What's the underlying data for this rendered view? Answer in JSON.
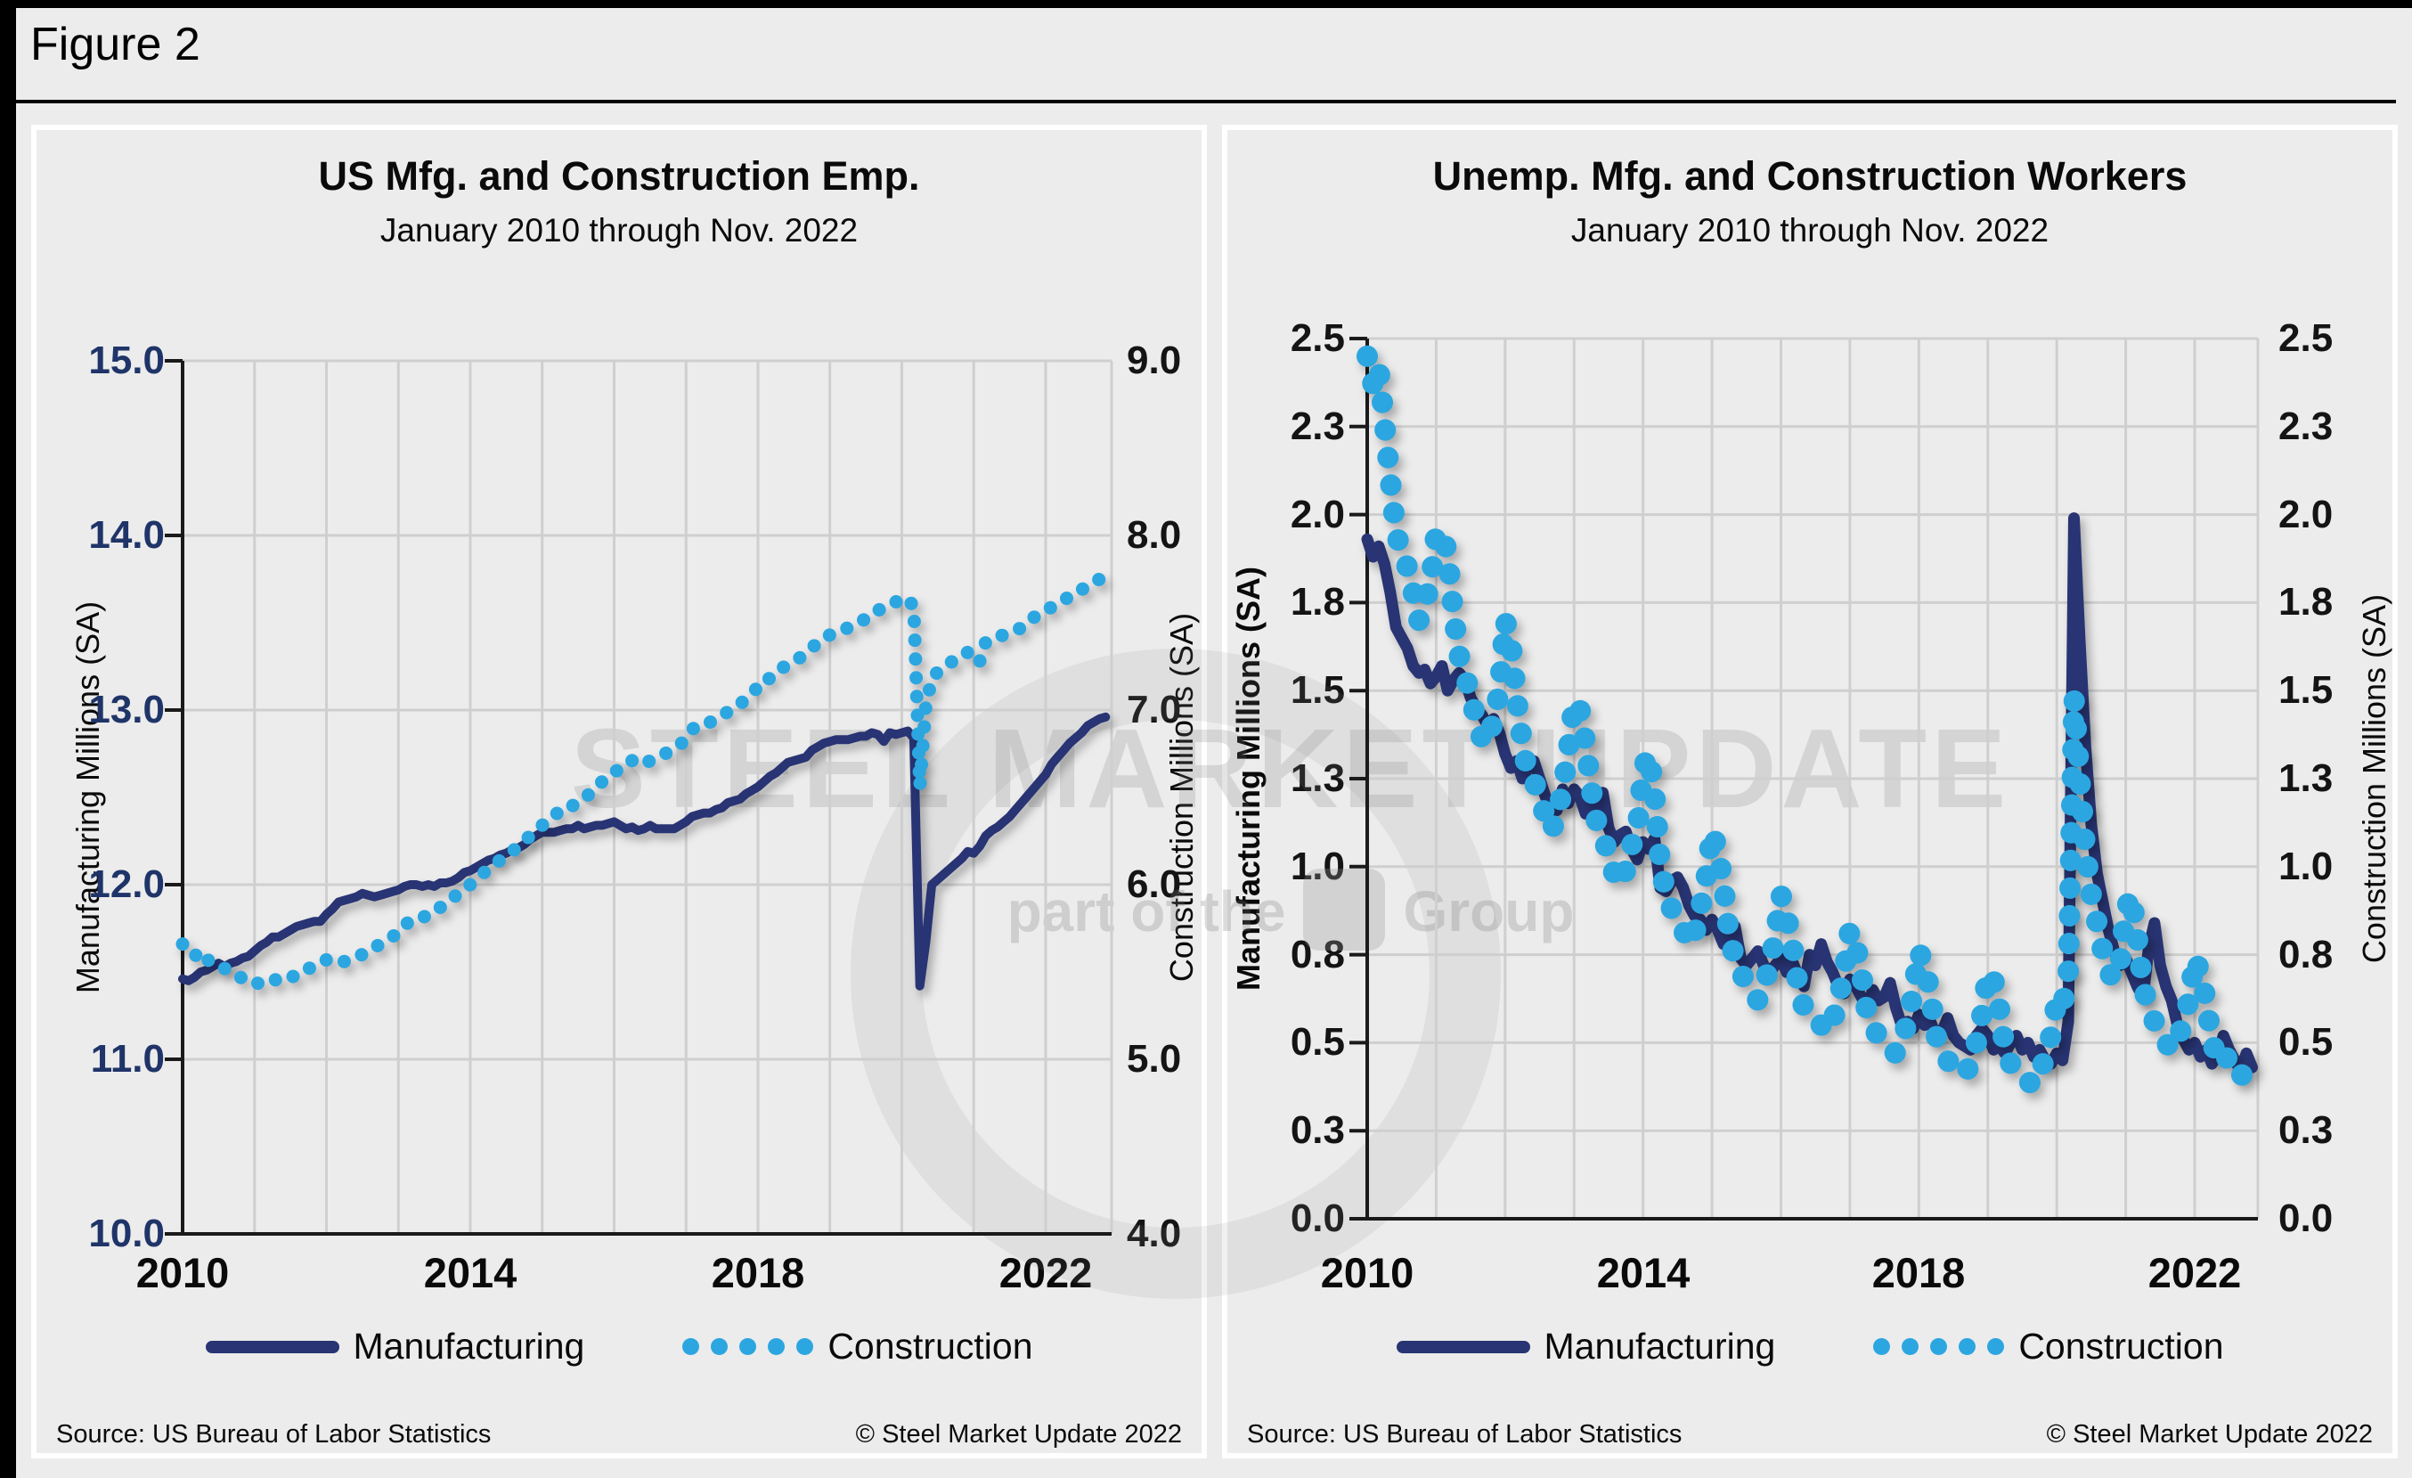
{
  "figure": {
    "label": "Figure 2"
  },
  "watermark": {
    "line1": "STEEL MARKET UPDATE",
    "line2_prefix": "part of the",
    "line2_suffix": "Group"
  },
  "chart_data": [
    {
      "type": "line",
      "title": "US Mfg. and Construction Emp.",
      "subtitle": "January 2010 through Nov. 2022",
      "y_left": {
        "title": "Manufacturing Millions (SA)",
        "min": 10,
        "max": 15,
        "grid_step": 1,
        "tick_values": [
          15,
          14,
          13,
          12,
          11,
          10
        ],
        "labels": [
          "15.0",
          "14.0",
          "13.0",
          "12.0",
          "11.0",
          "10.0"
        ]
      },
      "y_right": {
        "title": "Construction Millions (SA)",
        "min": 4,
        "max": 9,
        "tick_values": [
          9,
          8,
          7,
          6,
          5,
          4
        ],
        "labels": [
          "9.0",
          "8.0",
          "7.0",
          "6.0",
          "5.0",
          "4.0"
        ]
      },
      "x_axis": {
        "min": 2010,
        "max": 2022.9167,
        "grid_step_years": 1,
        "tick_years": [
          2010,
          2014,
          2018,
          2022
        ],
        "labels": [
          "2010",
          "2014",
          "2018",
          "2022"
        ]
      },
      "legend": [
        {
          "label": "Manufacturing",
          "marker": "line"
        },
        {
          "label": "Construction",
          "marker": "dots"
        }
      ],
      "footer": {
        "source": "Source: US Bureau  of Labor Statistics",
        "copyright": "© Steel Market Update 2022"
      },
      "series": [
        {
          "name": "Manufacturing",
          "axis": "left",
          "style": "solid",
          "color": "#283473",
          "start": "2010-01",
          "frequency": "monthly",
          "values": [
            11.46,
            11.45,
            11.47,
            11.5,
            11.51,
            11.53,
            11.55,
            11.53,
            11.55,
            11.56,
            11.58,
            11.59,
            11.62,
            11.65,
            11.67,
            11.7,
            11.7,
            11.72,
            11.74,
            11.76,
            11.77,
            11.78,
            11.79,
            11.79,
            11.83,
            11.86,
            11.9,
            11.91,
            11.92,
            11.93,
            11.95,
            11.94,
            11.93,
            11.94,
            11.95,
            11.96,
            11.97,
            11.99,
            12.0,
            12.0,
            11.99,
            12.0,
            11.99,
            12.01,
            12.01,
            12.02,
            12.04,
            12.07,
            12.08,
            12.1,
            12.12,
            12.14,
            12.15,
            12.17,
            12.18,
            12.2,
            12.21,
            12.23,
            12.26,
            12.28,
            12.3,
            12.3,
            12.3,
            12.31,
            12.32,
            12.32,
            12.34,
            12.32,
            12.33,
            12.34,
            12.34,
            12.35,
            12.36,
            12.34,
            12.32,
            12.33,
            12.31,
            12.32,
            12.34,
            12.32,
            12.32,
            12.32,
            12.32,
            12.34,
            12.36,
            12.39,
            12.4,
            12.41,
            12.41,
            12.43,
            12.44,
            12.47,
            12.48,
            12.49,
            12.52,
            12.54,
            12.56,
            12.59,
            12.62,
            12.64,
            12.67,
            12.7,
            12.71,
            12.72,
            12.73,
            12.77,
            12.79,
            12.81,
            12.82,
            12.83,
            12.83,
            12.83,
            12.84,
            12.85,
            12.85,
            12.87,
            12.86,
            12.82,
            12.87,
            12.86,
            12.87,
            12.88,
            12.84,
            11.42,
            11.67,
            12.0,
            12.03,
            12.06,
            12.09,
            12.12,
            12.15,
            12.19,
            12.18,
            12.22,
            12.28,
            12.31,
            12.33,
            12.36,
            12.39,
            12.43,
            12.47,
            12.51,
            12.55,
            12.59,
            12.63,
            12.69,
            12.73,
            12.77,
            12.81,
            12.84,
            12.87,
            12.91,
            12.93,
            12.95,
            12.96
          ]
        },
        {
          "name": "Construction",
          "axis": "right",
          "style": "dotted",
          "color": "#2CA6E0",
          "start": "2010-01",
          "frequency": "monthly",
          "values": [
            5.66,
            5.62,
            5.59,
            5.62,
            5.57,
            5.56,
            5.55,
            5.52,
            5.51,
            5.49,
            5.46,
            5.45,
            5.43,
            5.44,
            5.46,
            5.46,
            5.45,
            5.45,
            5.47,
            5.48,
            5.51,
            5.52,
            5.53,
            5.55,
            5.57,
            5.56,
            5.55,
            5.56,
            5.58,
            5.59,
            5.6,
            5.61,
            5.64,
            5.66,
            5.68,
            5.7,
            5.73,
            5.77,
            5.79,
            5.79,
            5.81,
            5.83,
            5.84,
            5.87,
            5.89,
            5.92,
            5.95,
            5.98,
            6.0,
            6.03,
            6.06,
            6.09,
            6.12,
            6.14,
            6.17,
            6.19,
            6.22,
            6.25,
            6.28,
            6.31,
            6.34,
            6.37,
            6.39,
            6.43,
            6.45,
            6.45,
            6.48,
            6.5,
            6.52,
            6.56,
            6.59,
            6.62,
            6.64,
            6.67,
            6.7,
            6.71,
            6.69,
            6.69,
            6.71,
            6.72,
            6.74,
            6.76,
            6.78,
            6.8,
            6.84,
            6.89,
            6.91,
            6.91,
            6.93,
            6.95,
            6.97,
            6.99,
            7.01,
            7.03,
            7.07,
            7.1,
            7.13,
            7.18,
            7.18,
            7.2,
            7.24,
            7.26,
            7.28,
            7.3,
            7.33,
            7.36,
            7.38,
            7.41,
            7.43,
            7.45,
            7.46,
            7.47,
            7.49,
            7.51,
            7.52,
            7.55,
            7.57,
            7.59,
            7.6,
            7.62,
            7.62,
            7.64,
            7.59,
            6.56,
            7.02,
            7.18,
            7.22,
            7.25,
            7.27,
            7.29,
            7.32,
            7.33,
            7.34,
            7.28,
            7.39,
            7.41,
            7.42,
            7.43,
            7.45,
            7.46,
            7.47,
            7.5,
            7.53,
            7.55,
            7.57,
            7.59,
            7.61,
            7.63,
            7.65,
            7.66,
            7.69,
            7.71,
            7.73,
            7.75,
            7.76
          ]
        }
      ]
    },
    {
      "type": "line",
      "title": "Unemp. Mfg. and Construction Workers",
      "subtitle": "January 2010 through Nov. 2022",
      "y_left": {
        "title": "Manufacturing Millions (SA)",
        "min": 0,
        "max": 2.5,
        "grid_step": 0.25,
        "tick_values": [
          2.5,
          2.25,
          2.0,
          1.75,
          1.5,
          1.25,
          1.0,
          0.75,
          0.5,
          0.25,
          0
        ],
        "labels": [
          "2.5",
          "2.3",
          "2.0",
          "1.8",
          "1.5",
          "1.3",
          "1.0",
          "0.8",
          "0.5",
          "0.3",
          "0.0"
        ]
      },
      "y_right": {
        "title": "Construction Millions (SA)",
        "min": 0,
        "max": 2.5,
        "tick_values": [
          2.5,
          2.25,
          2.0,
          1.75,
          1.5,
          1.25,
          1.0,
          0.75,
          0.5,
          0.25,
          0
        ],
        "labels": [
          "2.5",
          "2.3",
          "2.0",
          "1.8",
          "1.5",
          "1.3",
          "1.0",
          "0.8",
          "0.5",
          "0.3",
          "0.0"
        ]
      },
      "x_axis": {
        "min": 2010,
        "max": 2022.9167,
        "grid_step_years": 1,
        "tick_years": [
          2010,
          2014,
          2018,
          2022
        ],
        "labels": [
          "2010",
          "2014",
          "2018",
          "2022"
        ]
      },
      "legend": [
        {
          "label": "Manufacturing",
          "marker": "line"
        },
        {
          "label": "Construction",
          "marker": "dots"
        }
      ],
      "footer": {
        "source": "Source: US Bureau  of Labor Statistics",
        "copyright": "© Steel Market Update 2022"
      },
      "series": [
        {
          "name": "Manufacturing",
          "axis": "left",
          "style": "solid",
          "color": "#283473",
          "start": "2010-01",
          "frequency": "monthly",
          "values": [
            1.93,
            1.88,
            1.91,
            1.86,
            1.78,
            1.68,
            1.65,
            1.62,
            1.57,
            1.55,
            1.56,
            1.52,
            1.54,
            1.57,
            1.5,
            1.53,
            1.55,
            1.53,
            1.48,
            1.45,
            1.43,
            1.4,
            1.42,
            1.38,
            1.32,
            1.28,
            1.3,
            1.25,
            1.28,
            1.3,
            1.25,
            1.2,
            1.16,
            1.16,
            1.22,
            1.18,
            1.22,
            1.2,
            1.15,
            1.18,
            1.16,
            1.21,
            1.11,
            1.07,
            1.09,
            1.1,
            1.05,
            1.02,
            1.07,
            1.05,
            1.08,
            0.94,
            0.93,
            0.96,
            0.97,
            0.94,
            0.89,
            0.86,
            0.85,
            0.82,
            0.85,
            0.82,
            0.78,
            0.79,
            0.83,
            0.74,
            0.72,
            0.74,
            0.76,
            0.72,
            0.7,
            0.72,
            0.74,
            0.7,
            0.73,
            0.69,
            0.66,
            0.75,
            0.72,
            0.78,
            0.73,
            0.7,
            0.66,
            0.64,
            0.68,
            0.66,
            0.63,
            0.6,
            0.65,
            0.62,
            0.63,
            0.67,
            0.6,
            0.55,
            0.56,
            0.54,
            0.58,
            0.55,
            0.56,
            0.52,
            0.53,
            0.57,
            0.52,
            0.5,
            0.49,
            0.48,
            0.52,
            0.54,
            0.52,
            0.48,
            0.49,
            0.47,
            0.5,
            0.52,
            0.48,
            0.5,
            0.46,
            0.48,
            0.45,
            0.44,
            0.47,
            0.45,
            0.56,
            1.99,
            1.64,
            1.34,
            1.12,
            0.98,
            0.9,
            0.82,
            0.76,
            0.72,
            0.74,
            0.7,
            0.66,
            0.63,
            0.77,
            0.84,
            0.72,
            0.66,
            0.62,
            0.55,
            0.51,
            0.48,
            0.5,
            0.46,
            0.48,
            0.44,
            0.47,
            0.52,
            0.48,
            0.45,
            0.42,
            0.47,
            0.43
          ]
        },
        {
          "name": "Construction",
          "axis": "right",
          "style": "dotted",
          "color": "#2CA6E0",
          "start": "2010-01",
          "frequency": "monthly",
          "values": [
            2.45,
            2.37,
            2.42,
            2.26,
            2.1,
            1.95,
            1.89,
            1.85,
            1.78,
            1.7,
            1.75,
            1.8,
            1.95,
            1.95,
            1.89,
            1.72,
            1.6,
            1.55,
            1.48,
            1.42,
            1.36,
            1.35,
            1.42,
            1.5,
            1.7,
            1.64,
            1.48,
            1.35,
            1.26,
            1.25,
            1.18,
            1.15,
            1.1,
            1.14,
            1.22,
            1.33,
            1.47,
            1.45,
            1.35,
            1.22,
            1.12,
            1.1,
            1.02,
            0.98,
            0.95,
            0.99,
            1.06,
            1.1,
            1.28,
            1.32,
            1.21,
            1.01,
            0.92,
            0.88,
            0.85,
            0.82,
            0.78,
            0.81,
            0.88,
            0.97,
            1.1,
            1.05,
            0.95,
            0.8,
            0.74,
            0.7,
            0.67,
            0.65,
            0.62,
            0.66,
            0.72,
            0.8,
            0.92,
            0.86,
            0.78,
            0.66,
            0.6,
            0.58,
            0.56,
            0.55,
            0.53,
            0.56,
            0.62,
            0.7,
            0.82,
            0.78,
            0.7,
            0.58,
            0.54,
            0.52,
            0.5,
            0.48,
            0.47,
            0.5,
            0.56,
            0.64,
            0.76,
            0.72,
            0.64,
            0.52,
            0.47,
            0.45,
            0.43,
            0.42,
            0.41,
            0.44,
            0.5,
            0.58,
            0.7,
            0.68,
            0.6,
            0.48,
            0.44,
            0.42,
            0.4,
            0.39,
            0.38,
            0.41,
            0.46,
            0.52,
            0.62,
            0.6,
            0.7,
            1.48,
            1.25,
            1.05,
            0.92,
            0.84,
            0.76,
            0.7,
            0.68,
            0.72,
            0.88,
            0.92,
            0.8,
            0.66,
            0.6,
            0.56,
            0.52,
            0.5,
            0.48,
            0.5,
            0.56,
            0.62,
            0.74,
            0.7,
            0.62,
            0.5,
            0.46,
            0.48,
            0.44,
            0.42,
            0.4,
            0.44,
            0.42
          ]
        }
      ]
    }
  ]
}
